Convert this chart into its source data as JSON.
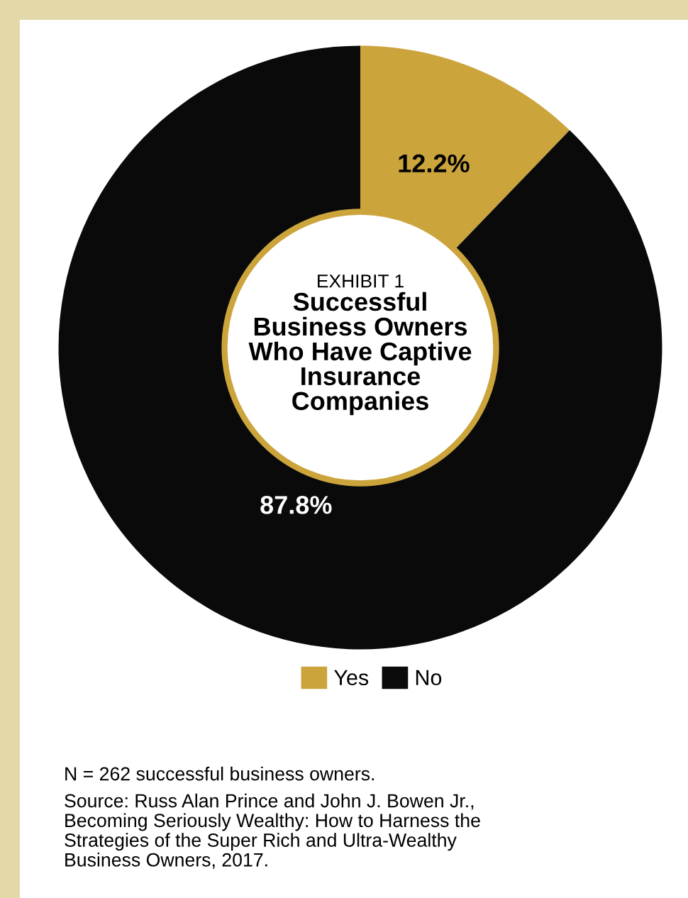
{
  "chart_data": {
    "type": "donut",
    "subtitle": "EXHIBIT 1",
    "title": "Successful\nBusiness Owners\nWho Have Captive\nInsurance\nCompanies",
    "categories": [
      "Yes",
      "No"
    ],
    "values": [
      12.2,
      87.8
    ],
    "value_labels": [
      "12.2%",
      "87.8%"
    ],
    "colors": [
      "#cba43c",
      "#0a0a0a"
    ],
    "legend": "bottom",
    "annotations": [
      "N = 262 successful business owners.",
      "Source: Russ Alan Prince and John J. Bowen Jr.,\nBecoming Seriously Wealthy: How to Harness the\nStrategies of the Super Rich and Ultra-Wealthy\nBusiness Owners, 2017."
    ]
  }
}
